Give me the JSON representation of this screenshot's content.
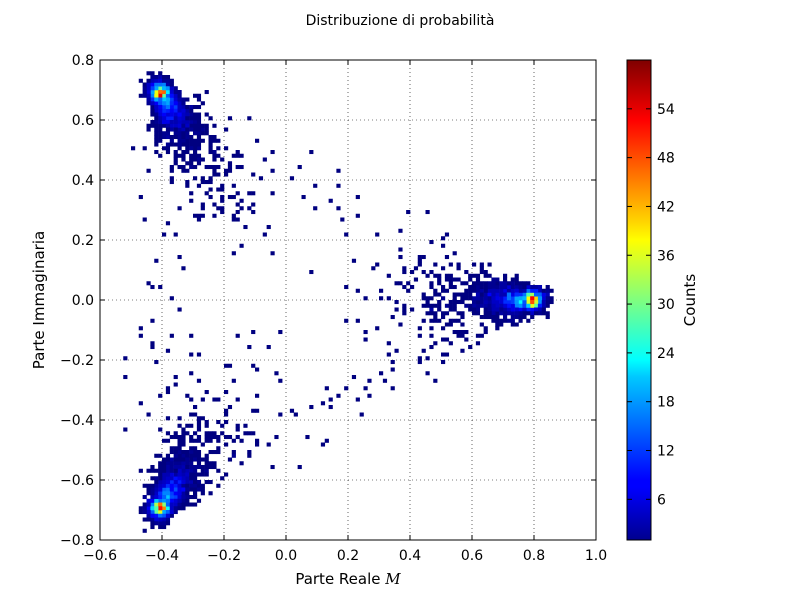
{
  "chart_data": {
    "type": "heatmap",
    "title": "Distribuzione di probabilità",
    "xlabel": "Parte Reale",
    "xlabel_symbol": "M",
    "ylabel": "Parte Immaginaria",
    "xlim": [
      -0.6,
      1.0
    ],
    "ylim": [
      -0.8,
      0.8
    ],
    "x_ticks": [
      -0.6,
      -0.4,
      -0.2,
      0.0,
      0.2,
      0.4,
      0.6,
      0.8,
      1.0
    ],
    "x_tick_labels": [
      "−0.6",
      "−0.4",
      "−0.2",
      "0.0",
      "0.2",
      "0.4",
      "0.6",
      "0.8",
      "1.0"
    ],
    "y_ticks": [
      -0.8,
      -0.6,
      -0.4,
      -0.2,
      0.0,
      0.2,
      0.4,
      0.6,
      0.8
    ],
    "y_tick_labels": [
      "−0.8",
      "−0.6",
      "−0.4",
      "−0.2",
      "0.0",
      "0.2",
      "0.4",
      "0.6",
      "0.8"
    ],
    "grid": true,
    "colormap": "jet",
    "colorbar": {
      "label": "Counts",
      "min": 1,
      "max": 60,
      "ticks": [
        6,
        12,
        18,
        24,
        30,
        36,
        42,
        48,
        54
      ],
      "tick_labels": [
        "6",
        "12",
        "18",
        "24",
        "30",
        "36",
        "42",
        "48",
        "54"
      ]
    },
    "clusters": [
      {
        "center": [
          0.78,
          0.0
        ],
        "peak_count": 58
      },
      {
        "center": [
          -0.4,
          0.68
        ],
        "peak_count": 54
      },
      {
        "center": [
          -0.4,
          -0.68
        ],
        "peak_count": 56
      }
    ]
  }
}
